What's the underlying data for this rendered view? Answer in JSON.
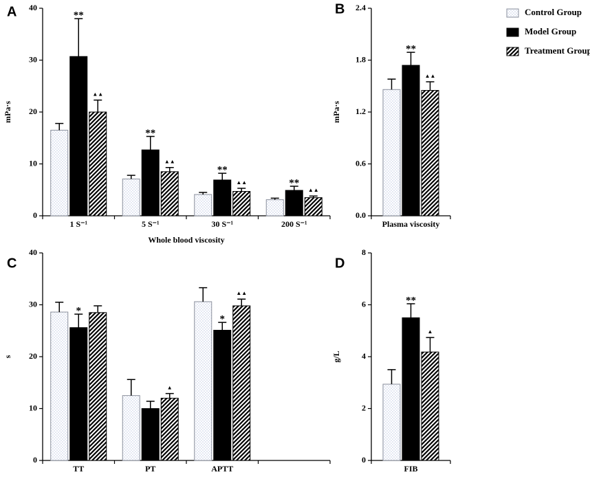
{
  "chart_data": [
    {
      "type": "bar",
      "panel": "A",
      "ylabel": "mPa·s",
      "xlabel": "Whole blood viscosity",
      "categories": [
        "1 S⁻¹",
        "5 S⁻¹",
        "30 S⁻¹",
        "200 S⁻¹"
      ],
      "ylim": [
        0,
        40
      ],
      "yticks": [
        0,
        10,
        20,
        30,
        40
      ],
      "series": [
        {
          "name": "Control Group",
          "color": "#e4e8f3",
          "pattern": "check",
          "values": [
            16.5,
            7.1,
            4.1,
            3.1
          ],
          "errors": [
            1.3,
            0.7,
            0.4,
            0.3
          ]
        },
        {
          "name": "Model Group",
          "color": "#000000",
          "pattern": "solid",
          "values": [
            30.7,
            12.7,
            6.9,
            4.9
          ],
          "errors": [
            7.3,
            2.6,
            1.3,
            0.8
          ],
          "annotations": [
            "**",
            "**",
            "**",
            "**"
          ]
        },
        {
          "name": "Treatment Group",
          "color": "#000000",
          "pattern": "hatch",
          "values": [
            20.0,
            8.5,
            4.7,
            3.5
          ],
          "errors": [
            2.3,
            0.8,
            0.6,
            0.3
          ],
          "annotations": [
            "▲▲",
            "▲▲",
            "▲▲",
            "▲▲"
          ]
        }
      ]
    },
    {
      "type": "bar",
      "panel": "B",
      "ylabel": "mPa·s",
      "categories": [
        "Plasma viscosity"
      ],
      "ylim": [
        0,
        2.4
      ],
      "yticks": [
        {
          "value": 0,
          "label": "0.0"
        },
        0.6,
        1.2,
        1.8,
        2.4
      ],
      "series": [
        {
          "name": "Control Group",
          "color": "#e4e8f3",
          "pattern": "check",
          "values": [
            1.46
          ],
          "errors": [
            0.12
          ]
        },
        {
          "name": "Model Group",
          "color": "#000000",
          "pattern": "solid",
          "values": [
            1.74
          ],
          "errors": [
            0.15
          ],
          "annotations": [
            "**"
          ]
        },
        {
          "name": "Treatment Group",
          "color": "#000000",
          "pattern": "hatch",
          "values": [
            1.45
          ],
          "errors": [
            0.1
          ],
          "annotations": [
            "▲▲"
          ]
        }
      ]
    },
    {
      "type": "bar",
      "panel": "C",
      "ylabel": "s",
      "categories": [
        "TT",
        "PT",
        "APTT",
        null
      ],
      "ylim": [
        0,
        40
      ],
      "yticks": [
        0,
        10,
        20,
        30,
        40
      ],
      "series": [
        {
          "name": "Control Group",
          "color": "#e4e8f3",
          "pattern": "check",
          "values": [
            28.6,
            12.5,
            30.6,
            null
          ],
          "errors": [
            1.9,
            3.1,
            2.7,
            null
          ]
        },
        {
          "name": "Model Group",
          "color": "#000000",
          "pattern": "solid",
          "values": [
            25.6,
            10.0,
            25.1,
            null
          ],
          "errors": [
            2.6,
            1.4,
            1.5,
            null
          ],
          "annotations": [
            "*",
            null,
            "*",
            null
          ]
        },
        {
          "name": "Treatment Group",
          "color": "#000000",
          "pattern": "hatch",
          "values": [
            28.5,
            12.0,
            29.8,
            null
          ],
          "errors": [
            1.3,
            0.9,
            1.3,
            null
          ],
          "annotations": [
            null,
            "▲",
            "▲▲",
            null
          ]
        }
      ]
    },
    {
      "type": "bar",
      "panel": "D",
      "ylabel": "g/L",
      "categories": [
        "FIB"
      ],
      "ylim": [
        0,
        8
      ],
      "yticks": [
        0,
        2,
        4,
        6,
        8
      ],
      "series": [
        {
          "name": "Control Group",
          "color": "#e4e8f3",
          "pattern": "check",
          "values": [
            2.94
          ],
          "errors": [
            0.56
          ]
        },
        {
          "name": "Model Group",
          "color": "#000000",
          "pattern": "solid",
          "values": [
            5.5
          ],
          "errors": [
            0.54
          ],
          "annotations": [
            "**"
          ]
        },
        {
          "name": "Treatment Group",
          "color": "#000000",
          "pattern": "hatch",
          "values": [
            4.18
          ],
          "errors": [
            0.56
          ],
          "annotations": [
            "▲"
          ]
        }
      ]
    }
  ]
}
